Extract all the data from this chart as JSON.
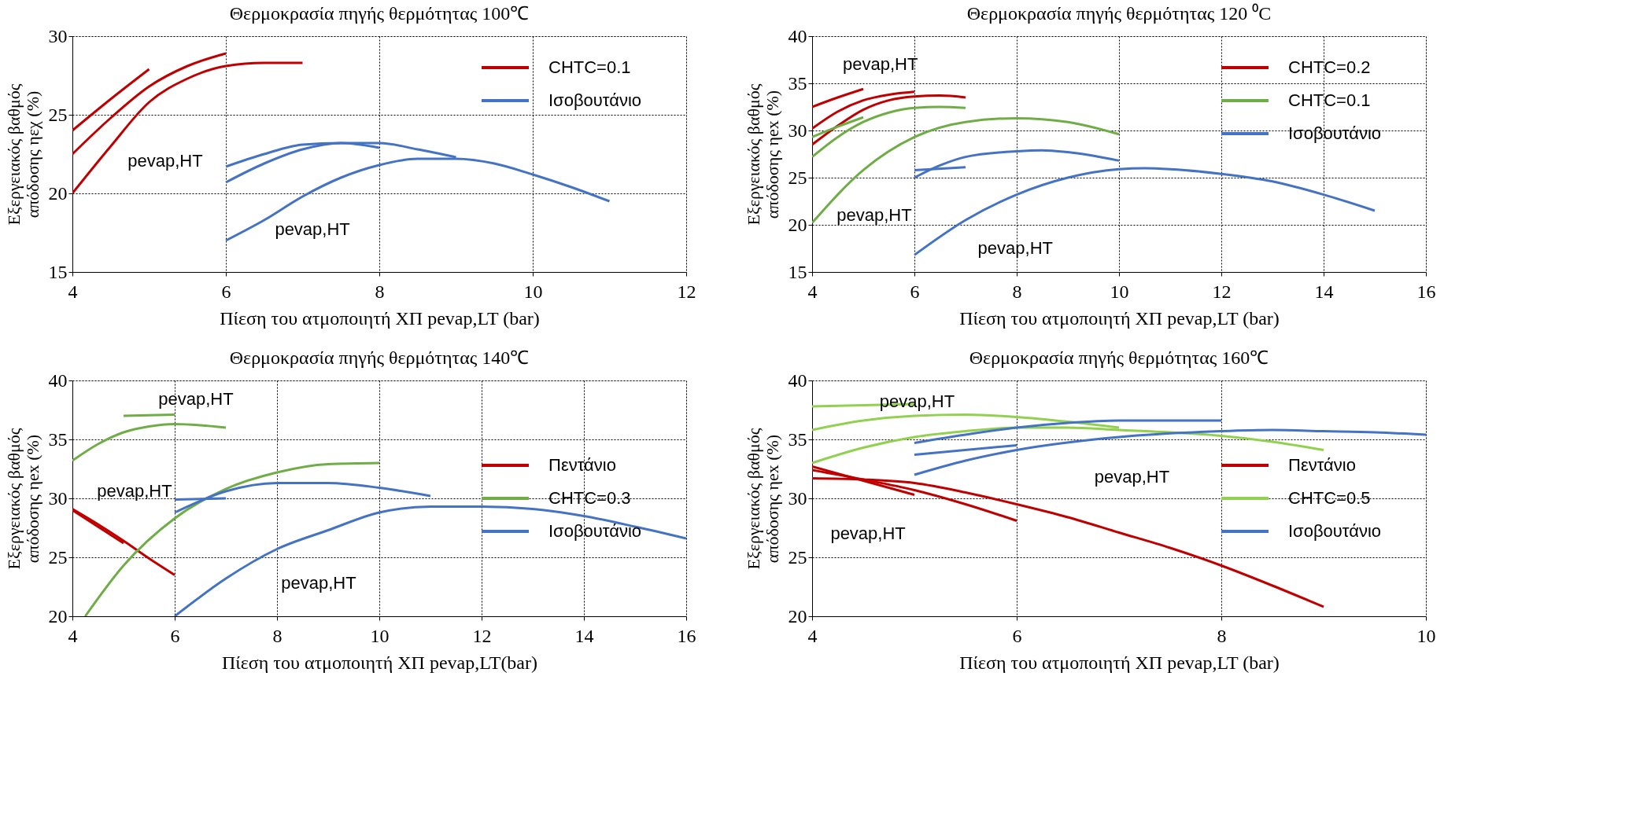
{
  "chart_data": [
    {
      "type": "line",
      "title": "Θερμοκρασία πηγής θερμότητας 100℃",
      "xlabel": "Πίεση του ατμοποιητή ΧΠ pevap,LT (bar)",
      "ylabel": "Εξεργειακός βαθμός απόδοσης ηεχ (%)",
      "xlim": [
        4,
        12
      ],
      "ylim": [
        15,
        30
      ],
      "xticks": [
        4,
        6,
        8,
        10,
        12
      ],
      "yticks": [
        15,
        20,
        25,
        30
      ],
      "grid": true,
      "legend": "top right",
      "line_style": "solid",
      "marker": "none",
      "series": [
        {
          "name": "CHTC=0.1",
          "color": "#c00000",
          "x": [
            4,
            4.5,
            5
          ],
          "values": [
            24,
            26,
            27.9
          ]
        },
        {
          "color": "#c00000",
          "x": [
            4,
            4.5,
            5,
            5.5,
            6
          ],
          "values": [
            22.5,
            24.8,
            26.8,
            28.1,
            28.9
          ]
        },
        {
          "color": "#c00000",
          "x": [
            4,
            4.5,
            5,
            5.5,
            6,
            6.5,
            7
          ],
          "values": [
            20,
            23,
            25.8,
            27.3,
            28.1,
            28.3,
            28.3
          ]
        },
        {
          "name": "Ισοβουτάνιο",
          "color": "#4472c4",
          "x": [
            6,
            6.5,
            7,
            7.5,
            8
          ],
          "values": [
            21.7,
            22.5,
            23.1,
            23.2,
            22.9
          ]
        },
        {
          "color": "#4472c4",
          "x": [
            6,
            6.5,
            7,
            7.5,
            8,
            8.5,
            9
          ],
          "values": [
            20.7,
            21.9,
            22.8,
            23.2,
            23.2,
            22.8,
            22.3
          ]
        },
        {
          "color": "#4472c4",
          "x": [
            6,
            6.5,
            7,
            7.5,
            8,
            8.5,
            9,
            9.5,
            10,
            10.5,
            11
          ],
          "values": [
            17,
            18.3,
            19.8,
            21,
            21.8,
            22.2,
            22.2,
            21.9,
            21.2,
            20.4,
            19.5
          ]
        }
      ],
      "annotations": [
        "pevap,HT",
        "pevap,HT"
      ]
    },
    {
      "type": "line",
      "title": "Θερμοκρασία  πηγής θερμότητας 120 ⁰C",
      "xlabel": "Πίεση του ατμοποιητή ΧΠ pevap,LT (bar)",
      "ylabel": "Εξεργειακός βαθμός απόδοσης ηex (%)",
      "xlim": [
        4,
        16
      ],
      "ylim": [
        15,
        40
      ],
      "xticks": [
        4,
        6,
        8,
        10,
        12,
        14,
        16
      ],
      "yticks": [
        15,
        20,
        25,
        30,
        35,
        40
      ],
      "grid": true,
      "legend": "top right",
      "line_style": "solid",
      "marker": "none",
      "series": [
        {
          "name": "CHTC=0.2",
          "color": "#c00000",
          "x": [
            4,
            4.5,
            5
          ],
          "values": [
            32.5,
            33.5,
            34.4
          ]
        },
        {
          "color": "#c00000",
          "x": [
            4,
            4.5,
            5,
            5.5,
            6
          ],
          "values": [
            30.2,
            32,
            33.2,
            33.8,
            34.1
          ]
        },
        {
          "color": "#c00000",
          "x": [
            4,
            4.5,
            5,
            5.5,
            6,
            6.5,
            7
          ],
          "values": [
            28.5,
            30.5,
            32.2,
            33.2,
            33.6,
            33.7,
            33.5
          ]
        },
        {
          "name": "CHTC=0.1",
          "color": "#70ad47",
          "x": [
            4,
            4.5,
            5
          ],
          "values": [
            29.3,
            30.4,
            31.4
          ]
        },
        {
          "color": "#70ad47",
          "x": [
            4,
            4.5,
            5,
            5.5,
            6,
            6.5,
            7
          ],
          "values": [
            27.2,
            29.3,
            30.9,
            31.9,
            32.4,
            32.5,
            32.4
          ]
        },
        {
          "color": "#70ad47",
          "x": [
            4,
            5,
            6,
            7,
            8,
            9,
            10
          ],
          "values": [
            20.2,
            25.8,
            29.3,
            30.9,
            31.3,
            30.9,
            29.6
          ]
        },
        {
          "name": "Ισοβουτάνιο",
          "color": "#4472c4",
          "x": [
            6,
            7
          ],
          "values": [
            25.8,
            26.1
          ]
        },
        {
          "color": "#4472c4",
          "x": [
            6,
            6.5,
            7,
            8,
            8.5,
            9,
            10
          ],
          "values": [
            25,
            26.3,
            27.2,
            27.8,
            27.9,
            27.7,
            26.8
          ]
        },
        {
          "color": "#4472c4",
          "x": [
            6,
            7,
            8,
            9,
            10,
            10.5,
            11,
            12,
            13,
            14,
            15
          ],
          "values": [
            16.8,
            20.5,
            23.2,
            25,
            25.9,
            26,
            25.9,
            25.4,
            24.6,
            23.2,
            21.5
          ]
        }
      ],
      "annotations": [
        "pevap,HT",
        "pevap,HT",
        "pevap,HT"
      ]
    },
    {
      "type": "line",
      "title": "Θερμοκρασία πηγής θερμότητας 140℃",
      "xlabel": "Πίεση του ατμοποιητή ΧΠ pevap,LT(bar)",
      "ylabel": "Εξεργειακός βαθμός απόδοσης ηex (%)",
      "xlim": [
        4,
        16
      ],
      "ylim": [
        20,
        40
      ],
      "xticks": [
        4,
        6,
        8,
        10,
        12,
        14,
        16
      ],
      "yticks": [
        20,
        25,
        30,
        35,
        40
      ],
      "grid": true,
      "legend": "right",
      "line_style": "solid",
      "marker": "none",
      "series": [
        {
          "name": "Πεντάνιο",
          "color": "#c00000",
          "x": [
            4,
            4.5,
            5
          ],
          "values": [
            29,
            27.6,
            26.2
          ]
        },
        {
          "color": "#c00000",
          "x": [
            4,
            4.5,
            5,
            5.5,
            6
          ],
          "values": [
            29.1,
            27.8,
            26.4,
            24.9,
            23.5
          ]
        },
        {
          "name": "CHTC=0.3",
          "color": "#70ad47",
          "x": [
            5,
            6
          ],
          "values": [
            37,
            37.1
          ]
        },
        {
          "color": "#70ad47",
          "x": [
            4,
            4.5,
            5,
            5.5,
            6,
            6.5,
            7
          ],
          "values": [
            33.2,
            34.6,
            35.6,
            36.1,
            36.3,
            36.2,
            36
          ]
        },
        {
          "color": "#70ad47",
          "x": [
            4.25,
            5,
            6,
            7,
            8,
            9,
            10
          ],
          "values": [
            20,
            24.3,
            28.3,
            30.8,
            32.2,
            32.9,
            33
          ]
        },
        {
          "name": "Ισοβουτάνιο",
          "color": "#4472c4",
          "x": [
            6,
            7
          ],
          "values": [
            29.9,
            30
          ]
        },
        {
          "color": "#4472c4",
          "x": [
            6,
            7,
            8,
            9,
            10,
            11
          ],
          "values": [
            28.8,
            30.6,
            31.3,
            31.3,
            30.9,
            30.2
          ]
        },
        {
          "color": "#4472c4",
          "x": [
            6,
            7,
            8,
            9,
            10,
            11,
            12,
            13,
            14,
            15,
            16
          ],
          "values": [
            20,
            23.2,
            25.7,
            27.3,
            28.8,
            29.3,
            29.3,
            29.1,
            28.5,
            27.6,
            26.6
          ]
        }
      ],
      "annotations": [
        "pevap,HT",
        "pevap,HT",
        "pevap,HT"
      ]
    },
    {
      "type": "line",
      "title": "Θερμοκρασία πηγής θερμότητας 160℃",
      "xlabel": "Πίεση του ατμοποιητή ΧΠ pevap,LT (bar)",
      "ylabel": "Εξεργειακός βαθμός απόδοσης ηex (%)",
      "xlim": [
        4,
        10
      ],
      "ylim": [
        20,
        40
      ],
      "xticks": [
        4,
        6,
        8,
        10
      ],
      "yticks": [
        20,
        25,
        30,
        35,
        40
      ],
      "grid": true,
      "legend": "right",
      "line_style": "solid",
      "marker": "none",
      "series": [
        {
          "name": "Πεντάνιο",
          "color": "#c00000",
          "x": [
            4,
            4.5,
            5
          ],
          "values": [
            32.7,
            31.5,
            30.3
          ]
        },
        {
          "color": "#c00000",
          "x": [
            4,
            4.5,
            5,
            5.5,
            6
          ],
          "values": [
            32.4,
            31.6,
            30.7,
            29.5,
            28.1
          ]
        },
        {
          "color": "#c00000",
          "x": [
            4,
            4.5,
            5,
            5.5,
            6,
            6.5,
            7,
            7.5,
            8,
            8.5,
            9
          ],
          "values": [
            31.7,
            31.6,
            31.3,
            30.5,
            29.5,
            28.4,
            27.1,
            25.8,
            24.3,
            22.6,
            20.8
          ]
        },
        {
          "name": "CHTC=0.5",
          "color": "#92d050",
          "x": [
            4,
            4.5,
            5
          ],
          "values": [
            37.8,
            37.9,
            38
          ]
        },
        {
          "color": "#92d050",
          "x": [
            4,
            4.5,
            5,
            5.5,
            6,
            6.5,
            7
          ],
          "values": [
            35.8,
            36.6,
            37,
            37.1,
            36.9,
            36.5,
            36
          ]
        },
        {
          "color": "#92d050",
          "x": [
            4,
            4.5,
            5,
            5.5,
            6,
            6.5,
            7,
            7.5,
            8,
            8.5,
            9
          ],
          "values": [
            33,
            34.3,
            35.2,
            35.7,
            36,
            36,
            35.8,
            35.6,
            35.3,
            34.8,
            34.1
          ]
        },
        {
          "name": "Ισοβουτάνιο",
          "color": "#4472c4",
          "x": [
            5,
            6
          ],
          "values": [
            33.7,
            34.5
          ]
        },
        {
          "color": "#4472c4",
          "x": [
            5,
            5.5,
            6,
            6.5,
            7,
            7.5,
            8
          ],
          "values": [
            34.7,
            35.4,
            36,
            36.4,
            36.6,
            36.6,
            36.6
          ]
        },
        {
          "color": "#4472c4",
          "x": [
            5,
            5.5,
            6,
            7,
            8,
            8.5,
            9,
            9.5,
            10
          ],
          "values": [
            32,
            33.2,
            34.1,
            35.2,
            35.7,
            35.8,
            35.7,
            35.6,
            35.4
          ]
        }
      ],
      "annotations": [
        "pevap,HT",
        "pevap,HT",
        "pevap,HT"
      ]
    }
  ]
}
